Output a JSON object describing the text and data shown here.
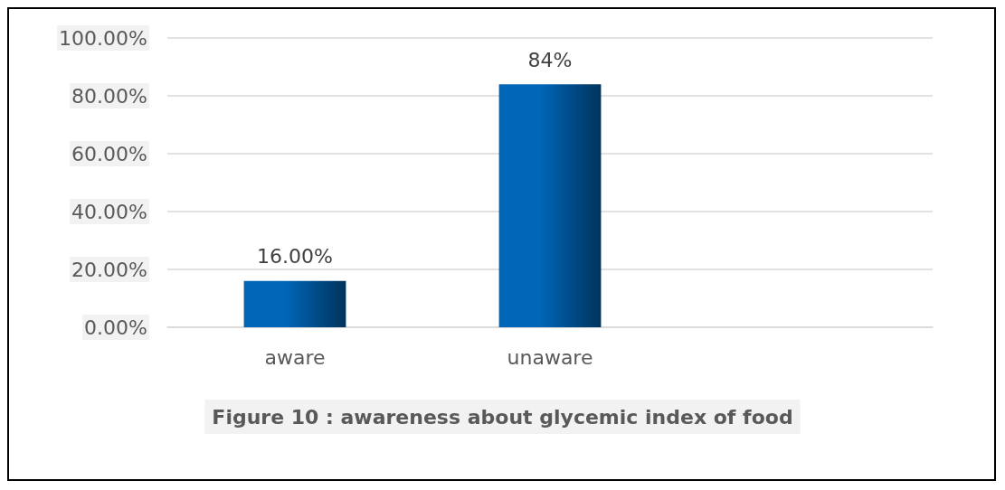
{
  "chart_data": {
    "type": "bar",
    "title": "Figure 10 : awareness about glycemic index of food",
    "categories": [
      "aware",
      "unaware",
      null
    ],
    "values": [
      16,
      84,
      null
    ],
    "value_labels": [
      "16.00%",
      "84%",
      null
    ],
    "color": "#0066b8",
    "ylim": [
      0,
      100
    ],
    "yticks": [
      {
        "value": 0,
        "label": "0.00%"
      },
      {
        "value": 20,
        "label": "20.00%"
      },
      {
        "value": 40,
        "label": "40.00%"
      },
      {
        "value": 60,
        "label": "60.00%"
      },
      {
        "value": 80,
        "label": "80.00%"
      },
      {
        "value": 100,
        "label": "100.00%"
      }
    ],
    "grid": "y"
  }
}
